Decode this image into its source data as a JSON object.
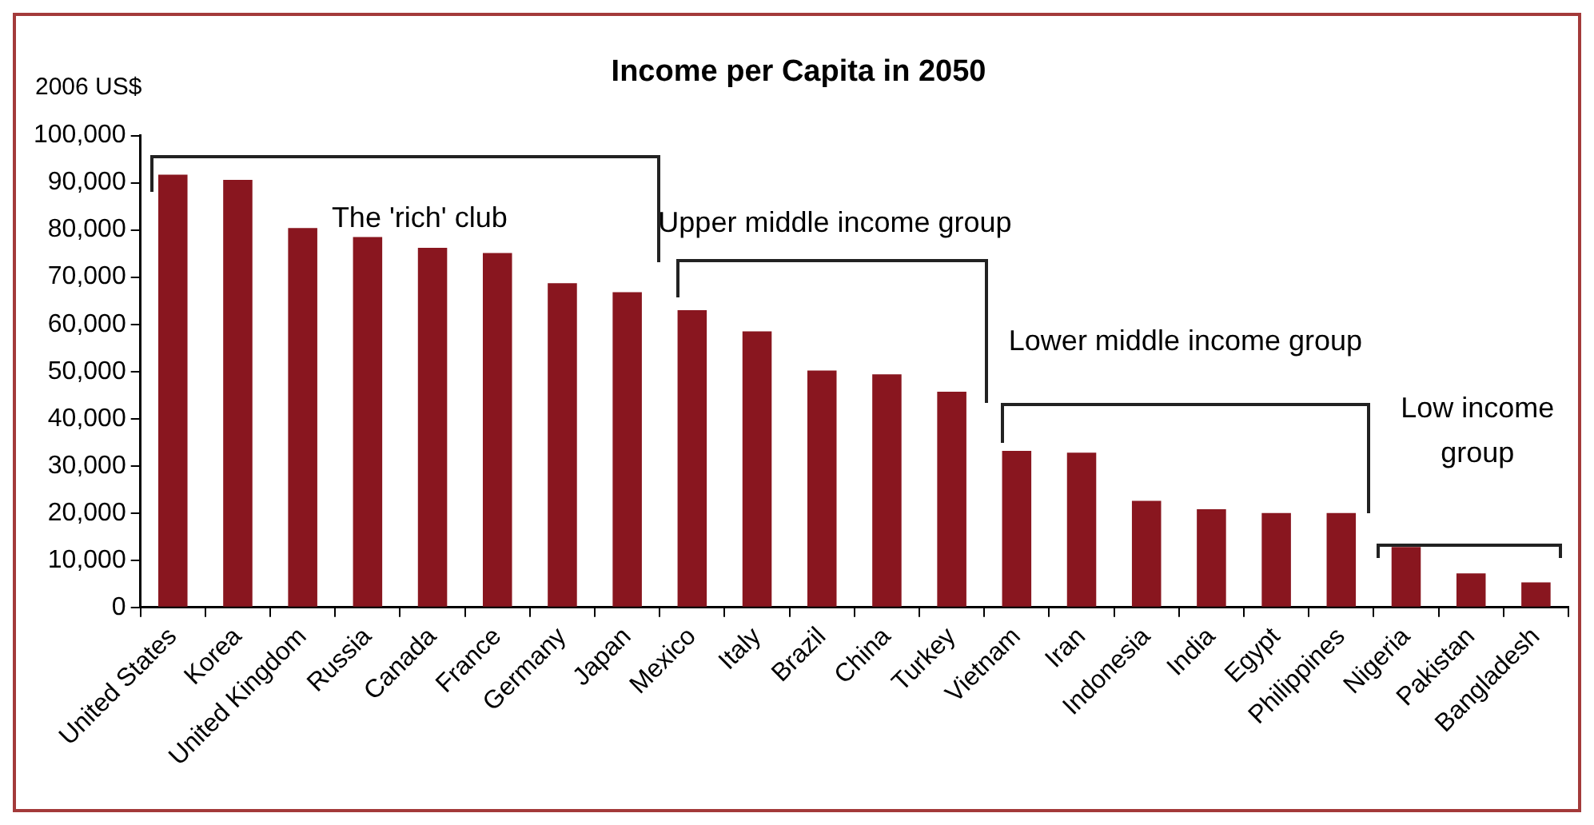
{
  "chart_data": {
    "type": "bar",
    "title": "Income per Capita in 2050",
    "ylabel": "2006 US$",
    "categories": [
      "United States",
      "Korea",
      "United Kingdom",
      "Russia",
      "Canada",
      "France",
      "Germany",
      "Japan",
      "Mexico",
      "Italy",
      "Brazil",
      "China",
      "Turkey",
      "Vietnam",
      "Iran",
      "Indonesia",
      "India",
      "Egypt",
      "Philippines",
      "Nigeria",
      "Pakistan",
      "Bangladesh"
    ],
    "values": [
      91700,
      90600,
      80400,
      78500,
      76200,
      75100,
      68700,
      66800,
      63000,
      58500,
      50200,
      49400,
      45700,
      33200,
      32800,
      22600,
      20800,
      20000,
      20000,
      12800,
      7200,
      5300
    ],
    "color": "#89161f",
    "ylim": [
      0,
      100000
    ],
    "yticks": [
      {
        "value": 0,
        "label": "0"
      },
      {
        "value": 10000,
        "label": "10,000"
      },
      {
        "value": 20000,
        "label": "20,000"
      },
      {
        "value": 30000,
        "label": "30,000"
      },
      {
        "value": 40000,
        "label": "40,000"
      },
      {
        "value": 50000,
        "label": "50,000"
      },
      {
        "value": 60000,
        "label": "60,000"
      },
      {
        "value": 70000,
        "label": "70,000"
      },
      {
        "value": 80000,
        "label": "80,000"
      },
      {
        "value": 90000,
        "label": "90,000"
      },
      {
        "value": 100000,
        "label": "100,000"
      }
    ],
    "grid": false,
    "legend": false,
    "annotations": [
      "The 'rich' club",
      "Upper middle income group",
      "Lower middle income group",
      "Low income group"
    ]
  }
}
